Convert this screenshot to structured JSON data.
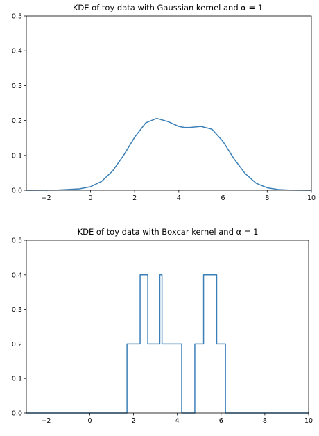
{
  "chart_data": [
    {
      "type": "line",
      "title": "KDE of toy data with Gaussian kernel and α = 1",
      "xlabel": "",
      "ylabel": "",
      "xlim": [
        -2.9,
        10
      ],
      "ylim": [
        0,
        0.5
      ],
      "xticks": [
        -2,
        0,
        2,
        4,
        6,
        8,
        10
      ],
      "yticks": [
        0.0,
        0.1,
        0.2,
        0.3,
        0.4,
        0.5
      ],
      "xtick_labels": [
        "−2",
        "0",
        "2",
        "4",
        "6",
        "8",
        "10"
      ],
      "ytick_labels": [
        "0.0",
        "0.1",
        "0.2",
        "0.3",
        "0.4",
        "0.5"
      ],
      "grid": false,
      "line_color": "#3a7fb8",
      "step": false,
      "series": [
        {
          "x": [
            -2.9,
            -1.5,
            -0.5,
            0,
            0.5,
            1.0,
            1.5,
            2.0,
            2.5,
            3.0,
            3.5,
            4.0,
            4.25,
            4.5,
            5.0,
            5.5,
            6.0,
            6.5,
            7.0,
            7.5,
            8.0,
            8.5,
            9.0,
            10.0
          ],
          "y": [
            0.0,
            0.0005,
            0.004,
            0.01,
            0.025,
            0.055,
            0.1,
            0.152,
            0.193,
            0.206,
            0.197,
            0.183,
            0.18,
            0.18,
            0.183,
            0.175,
            0.14,
            0.09,
            0.048,
            0.02,
            0.007,
            0.002,
            0.0005,
            0.0
          ]
        }
      ]
    },
    {
      "type": "line",
      "title": "KDE of toy data with Boxcar kernel and α = 1",
      "xlabel": "",
      "ylabel": "",
      "xlim": [
        -2.9,
        10
      ],
      "ylim": [
        0,
        0.5
      ],
      "xticks": [
        -2,
        0,
        2,
        4,
        6,
        8,
        10
      ],
      "yticks": [
        0.0,
        0.1,
        0.2,
        0.3,
        0.4,
        0.5
      ],
      "xtick_labels": [
        "−2",
        "0",
        "2",
        "4",
        "6",
        "8",
        "10"
      ],
      "ytick_labels": [
        "0.0",
        "0.1",
        "0.2",
        "0.3",
        "0.4",
        "0.5"
      ],
      "grid": false,
      "line_color": "#3a7fb8",
      "step": true,
      "series": [
        {
          "x": [
            -2.9,
            1.7,
            1.7,
            2.3,
            2.3,
            2.65,
            2.65,
            3.2,
            3.2,
            3.3,
            3.3,
            4.2,
            4.2,
            4.8,
            4.8,
            5.2,
            5.2,
            5.8,
            5.8,
            6.2,
            6.2,
            10.0
          ],
          "y": [
            0.0,
            0.0,
            0.2,
            0.2,
            0.4,
            0.4,
            0.2,
            0.2,
            0.4,
            0.4,
            0.2,
            0.2,
            0.0,
            0.0,
            0.2,
            0.2,
            0.4,
            0.4,
            0.2,
            0.2,
            0.0,
            0.0
          ]
        }
      ]
    }
  ]
}
